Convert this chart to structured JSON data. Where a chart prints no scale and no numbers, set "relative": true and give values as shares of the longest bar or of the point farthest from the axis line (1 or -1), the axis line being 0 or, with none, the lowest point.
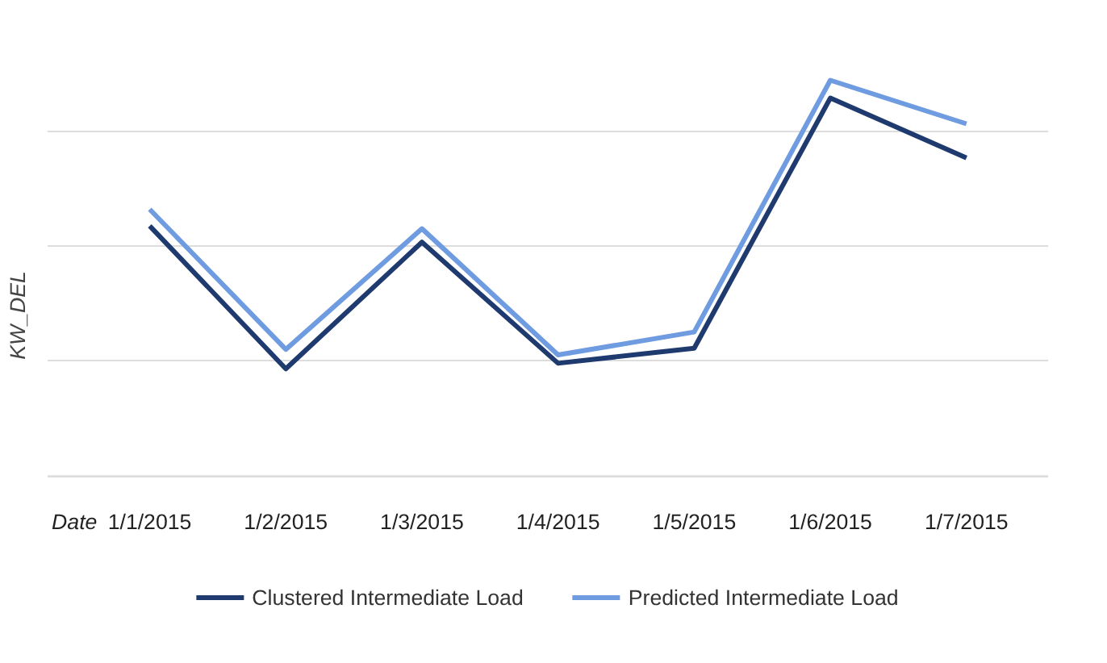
{
  "chart_data": {
    "type": "line",
    "relative": true,
    "xlabel": "Date",
    "ylabel": "KW_DEL",
    "categories": [
      "1/1/2015",
      "1/2/2015",
      "1/3/2015",
      "1/4/2015",
      "1/5/2015",
      "1/6/2015",
      "1/7/2015"
    ],
    "series": [
      {
        "name": "Clustered Intermediate Load",
        "color": "#1f3a6e",
        "values": [
          0.632,
          0.271,
          0.591,
          0.285,
          0.323,
          0.955,
          0.804
        ]
      },
      {
        "name": "Predicted Intermediate Load",
        "color": "#6f9be0",
        "values": [
          0.674,
          0.32,
          0.625,
          0.306,
          0.364,
          1.0,
          0.89
        ]
      }
    ],
    "grid": "y",
    "legend": "bottom",
    "marker": "none",
    "line_style": "solid"
  }
}
